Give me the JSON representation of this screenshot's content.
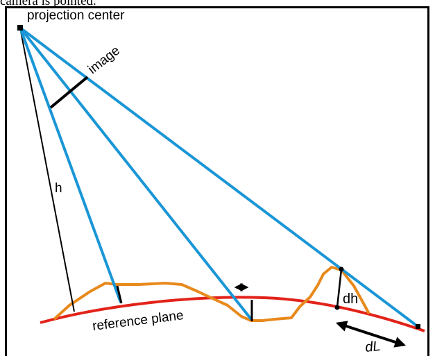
{
  "caption": "camera is pointed.",
  "labels": {
    "projection_center": "projection center",
    "image": "image",
    "height": "h",
    "reference_plane": "reference plane",
    "height_difference": "dh",
    "displacement": "dL"
  },
  "colors": {
    "ray": "#1a96d6",
    "terrain": "#e8891c",
    "reference_plane": "#e2231a",
    "reference_plane_label": "#e2231a",
    "line": "#000000",
    "frame": "#000000"
  }
}
